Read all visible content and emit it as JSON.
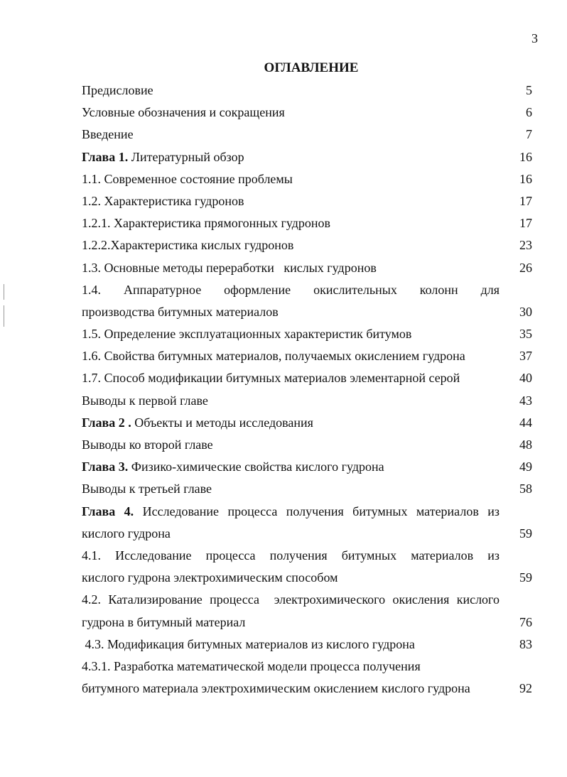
{
  "page_number": "3",
  "title": "ОГЛАВЛЕНИЕ",
  "entries": [
    {
      "lines": [
        {
          "bold": "",
          "text": "Предисловие"
        }
      ],
      "page": "5"
    },
    {
      "lines": [
        {
          "bold": "",
          "text": "Условные обозначения и сокращения"
        }
      ],
      "page": "6"
    },
    {
      "lines": [
        {
          "bold": "",
          "text": "Введение"
        }
      ],
      "page": "7"
    },
    {
      "lines": [
        {
          "bold": "Глава 1.",
          "text": " Литературный обзор"
        }
      ],
      "page": "16"
    },
    {
      "lines": [
        {
          "bold": "",
          "text": "1.1. Современное состояние проблемы"
        }
      ],
      "page": "16"
    },
    {
      "lines": [
        {
          "bold": "",
          "text": "1.2. Характеристика гудронов"
        }
      ],
      "page": "17"
    },
    {
      "lines": [
        {
          "bold": "",
          "text": "1.2.1. Характеристика прямогонных гудронов"
        }
      ],
      "page": "17"
    },
    {
      "lines": [
        {
          "bold": "",
          "text": "1.2.2.Характеристика кислых гудронов"
        }
      ],
      "page": "23"
    },
    {
      "lines": [
        {
          "bold": "",
          "text": "1.3. Основные методы переработки   кислых гудронов"
        }
      ],
      "page": "26"
    },
    {
      "lines": [
        {
          "bold": "",
          "text": "1.4. Аппаратурное оформление окислительных колонн для",
          "justify": true
        },
        {
          "bold": "",
          "text": "производства битумных материалов"
        }
      ],
      "page": "30"
    },
    {
      "lines": [
        {
          "bold": "",
          "text": "1.5. Определение эксплуатационных характеристик битумов"
        }
      ],
      "page": "35"
    },
    {
      "lines": [
        {
          "bold": "",
          "text": "1.6. Свойства битумных материалов, получаемых окислением гудрона"
        }
      ],
      "page": "37"
    },
    {
      "lines": [
        {
          "bold": "",
          "text": "1.7. Способ модификации битумных материалов элементарной серой"
        }
      ],
      "page": "40"
    },
    {
      "lines": [
        {
          "bold": "",
          "text": "Выводы к первой главе"
        }
      ],
      "page": "43"
    },
    {
      "lines": [
        {
          "bold": "Глава 2 .",
          "text": " Объекты и методы исследования"
        }
      ],
      "page": "44"
    },
    {
      "lines": [
        {
          "bold": "",
          "text": "Выводы ко второй главе"
        }
      ],
      "page": "48"
    },
    {
      "lines": [
        {
          "bold": "Глава 3.",
          "text": " Физико-химические свойства кислого гудрона"
        }
      ],
      "page": "49"
    },
    {
      "lines": [
        {
          "bold": "",
          "text": "Выводы к третьей главе"
        }
      ],
      "page": "58"
    },
    {
      "lines": [
        {
          "bold": "Глава 4.",
          "text": " Исследование процесса получения битумных материалов из",
          "justify": true
        },
        {
          "bold": "",
          "text": "кислого гудрона"
        }
      ],
      "page": "59"
    },
    {
      "lines": [
        {
          "bold": "",
          "text": "4.1. Исследование процесса получения битумных материалов из",
          "justify": true
        },
        {
          "bold": "",
          "text": "кислого гудрона электрохимическим способом"
        }
      ],
      "page": "59"
    },
    {
      "lines": [
        {
          "bold": "",
          "text": "4.2. Катализирование процесса  электрохимического окисления кислого",
          "justify": true
        },
        {
          "bold": "",
          "text": "гудрона в битумный материал"
        }
      ],
      "page": "76"
    },
    {
      "lines": [
        {
          "bold": "",
          "text": " 4.3. Модификация битумных материалов из кислого гудрона"
        }
      ],
      "page": "83"
    },
    {
      "lines": [
        {
          "bold": "",
          "text": "4.3.1. Разработка математической модели процесса получения"
        },
        {
          "bold": "",
          "text": "битумного материала электрохимическим окислением кислого гудрона"
        }
      ],
      "page": "92"
    }
  ]
}
